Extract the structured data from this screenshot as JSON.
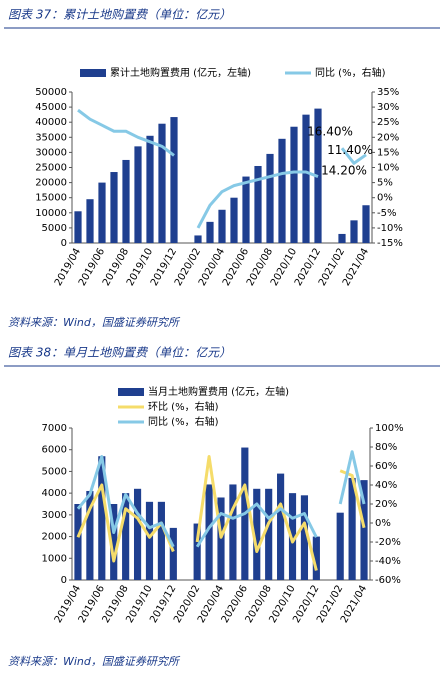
{
  "chart_data": [
    {
      "type": "bar",
      "title": "图表 37：累计土地购置费（单位：亿元）",
      "source": "资料来源：Wind，国盛证券研究所",
      "categories": [
        "2019/04",
        null,
        "2019/06",
        null,
        "2019/08",
        null,
        "2019/10",
        null,
        "2019/12",
        null,
        "2020/02",
        null,
        "2020/04",
        null,
        "2020/06",
        null,
        "2020/08",
        null,
        "2020/10",
        null,
        "2020/12",
        null,
        "2021/02",
        null,
        "2021/04"
      ],
      "series": [
        {
          "name": "累计土地购置费用 (亿元，左轴)",
          "type": "bar",
          "color": "#1f3f8f",
          "values": [
            10500,
            14500,
            20000,
            23500,
            27500,
            32000,
            35500,
            39500,
            41700,
            null,
            2500,
            7000,
            11000,
            15000,
            22000,
            25500,
            29500,
            34500,
            38500,
            42500,
            44500,
            null,
            3000,
            7500,
            12500
          ]
        },
        {
          "name": "同比 (%，右轴)",
          "type": "line",
          "axis": "y2",
          "color": "#86c9e6",
          "values": [
            29,
            26,
            24,
            22,
            22,
            20,
            18.5,
            17,
            14,
            null,
            -10,
            -2.5,
            2,
            4,
            5,
            6,
            7,
            8,
            8.5,
            8.5,
            7,
            null,
            16.4,
            11.4,
            14.2
          ],
          "value_labels": [
            null,
            null,
            null,
            null,
            null,
            null,
            null,
            null,
            null,
            null,
            null,
            null,
            null,
            null,
            null,
            null,
            null,
            null,
            null,
            null,
            null,
            null,
            "16.40%",
            "11.40%",
            "14.20%"
          ]
        }
      ],
      "ylim": [
        0,
        50000
      ],
      "yticks": [
        0,
        5000,
        10000,
        15000,
        20000,
        25000,
        30000,
        35000,
        40000,
        45000,
        50000
      ],
      "y2lim": [
        -15,
        35
      ],
      "y2ticks": [
        {
          "value": -15,
          "label": "-15%"
        },
        {
          "value": -10,
          "label": "-10%"
        },
        {
          "value": -5,
          "label": "-5%"
        },
        {
          "value": 0,
          "label": "0%"
        },
        {
          "value": 5,
          "label": "5%"
        },
        {
          "value": 10,
          "label": "10%"
        },
        {
          "value": 15,
          "label": "15%"
        },
        {
          "value": 20,
          "label": "20%"
        },
        {
          "value": 25,
          "label": "25%"
        },
        {
          "value": 30,
          "label": "30%"
        },
        {
          "value": 35,
          "label": "35%"
        }
      ],
      "legend": "top"
    },
    {
      "type": "bar",
      "title": "图表 38：单月土地购置费（单位：亿元）",
      "source": "资料来源：Wind，国盛证券研究所",
      "categories": [
        "2019/04",
        null,
        "2019/06",
        null,
        "2019/08",
        null,
        "2019/10",
        null,
        "2019/12",
        null,
        "2020/02",
        null,
        "2020/04",
        null,
        "2020/06",
        null,
        "2020/08",
        null,
        "2020/10",
        null,
        "2020/12",
        null,
        "2021/02",
        null,
        "2021/04"
      ],
      "series": [
        {
          "name": "当月土地购置费用 (亿元，左轴)",
          "type": "bar",
          "color": "#1f3f8f",
          "values": [
            3500,
            4100,
            5700,
            3500,
            4000,
            4200,
            3600,
            3600,
            2400,
            null,
            2600,
            4400,
            3800,
            4400,
            6100,
            4200,
            4200,
            4900,
            4000,
            3900,
            2000,
            null,
            3100,
            4700,
            4600
          ]
        },
        {
          "name": "环比 (%，右轴)",
          "type": "line",
          "axis": "y2",
          "color": "#f5dc6a",
          "values": [
            -15,
            15,
            40,
            -40,
            15,
            5,
            -15,
            0,
            -30,
            null,
            -20,
            70,
            -15,
            15,
            40,
            -30,
            0,
            20,
            -20,
            0,
            -50,
            null,
            55,
            50,
            -5
          ]
        },
        {
          "name": "同比 (%，右轴)",
          "type": "line",
          "axis": "y2",
          "color": "#86c9e6",
          "values": [
            15,
            30,
            70,
            -10,
            30,
            10,
            -5,
            0,
            -25,
            null,
            -25,
            -5,
            10,
            5,
            10,
            20,
            5,
            15,
            5,
            10,
            -15,
            null,
            20,
            75,
            20
          ]
        }
      ],
      "ylim": [
        0,
        7000
      ],
      "yticks": [
        0,
        1000,
        2000,
        3000,
        4000,
        5000,
        6000,
        7000
      ],
      "y2lim": [
        -60,
        100
      ],
      "y2ticks": [
        {
          "value": -60,
          "label": "-60%"
        },
        {
          "value": -40,
          "label": "-40%"
        },
        {
          "value": -20,
          "label": "-20%"
        },
        {
          "value": 0,
          "label": "0%"
        },
        {
          "value": 20,
          "label": "20%"
        },
        {
          "value": 40,
          "label": "40%"
        },
        {
          "value": 60,
          "label": "60%"
        },
        {
          "value": 80,
          "label": "80%"
        },
        {
          "value": 100,
          "label": "100%"
        }
      ],
      "legend": "top"
    }
  ]
}
